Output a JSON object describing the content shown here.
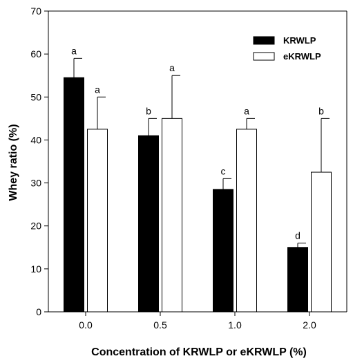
{
  "chart_data": {
    "type": "bar",
    "title": "",
    "xlabel": "Concentration of KRWLP or eKRWLP (%)",
    "ylabel": "Whey ratio (%)",
    "ylim": [
      0,
      70
    ],
    "yticks": [
      0,
      10,
      20,
      30,
      40,
      50,
      60,
      70
    ],
    "categories": [
      "0.0",
      "0.5",
      "1.0",
      "2.0"
    ],
    "legend_position": "top-right",
    "series": [
      {
        "name": "KRWLP",
        "color": "#000000",
        "values": [
          54.5,
          41,
          28.5,
          15
        ],
        "errors": [
          4.5,
          4,
          2.5,
          1
        ],
        "labels": [
          "a",
          "b",
          "c",
          "d"
        ]
      },
      {
        "name": "eKRWLP",
        "color": "#ffffff",
        "values": [
          42.5,
          45,
          42.5,
          32.5
        ],
        "errors": [
          7.5,
          10,
          2.5,
          12.5
        ],
        "labels": [
          "a",
          "a",
          "a",
          "b"
        ]
      }
    ]
  }
}
